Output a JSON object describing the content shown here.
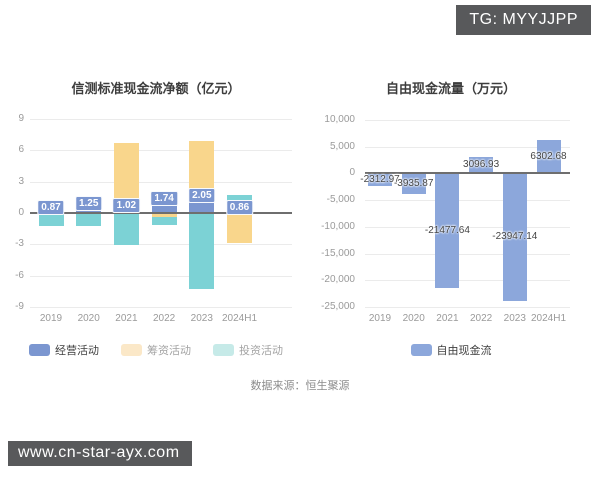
{
  "badge": {
    "text": "TG: MYYJJPP"
  },
  "watermark": {
    "text": "www.cn-star-ayx.com"
  },
  "source": {
    "text": "数据来源：恒生聚源"
  },
  "colors": {
    "operating_blue": "#7b96d0",
    "financing_orange": "#f9d68c",
    "investing_teal": "#7cd2d5",
    "free_cashflow_blue": "#8ca7db",
    "zero_line": "#6e6e6e",
    "gridline": "#ebebeb",
    "badge_bg": "#58595b"
  },
  "chart_data": [
    {
      "type": "bar",
      "variant": "stacked",
      "title": "信测标准现金流净额（亿元）",
      "unit": "亿元",
      "categories": [
        "2019",
        "2020",
        "2021",
        "2022",
        "2023",
        "2024H1"
      ],
      "ylim": [
        -9,
        9
      ],
      "yticks": [
        9,
        6,
        3,
        0,
        -3,
        -6,
        -9
      ],
      "grid": true,
      "legend_position": "bottom",
      "label_style": "box",
      "series": [
        {
          "name": "经营活动",
          "color": "#7b96d0",
          "legend_color": "#7b96d0",
          "values": [
            0.87,
            1.25,
            1.02,
            1.74,
            2.05,
            0.86
          ],
          "labels": [
            "0.87",
            "1.25",
            "1.02",
            "1.74",
            "2.05",
            "0.86"
          ]
        },
        {
          "name": "筹资活动",
          "color": "#f9d68c",
          "legend_color": "#fbe8c8",
          "legend_dim": true,
          "values": [
            0.1,
            0,
            5.7,
            -0.35,
            4.8,
            -2.87
          ]
        },
        {
          "name": "投资活动",
          "color": "#7cd2d5",
          "legend_color": "#c6eae8",
          "legend_dim": true,
          "values": [
            -1.25,
            -1.2,
            -3.1,
            -0.8,
            -7.3,
            0.9
          ]
        }
      ]
    },
    {
      "type": "bar",
      "variant": "simple",
      "title": "自由现金流量（万元）",
      "unit": "万元",
      "categories": [
        "2019",
        "2020",
        "2021",
        "2022",
        "2023",
        "2024H1"
      ],
      "ylim": [
        -25000,
        10000
      ],
      "yticks": [
        10000,
        5000,
        0,
        -5000,
        -10000,
        -15000,
        -20000,
        -25000
      ],
      "ytick_labels": [
        "10,000",
        "5,000",
        "0",
        "-5,000",
        "-10,000",
        "-15,000",
        "-20,000",
        "-25,000"
      ],
      "grid": true,
      "legend_position": "bottom",
      "label_style": "plain",
      "series": [
        {
          "name": "自由现金流",
          "color": "#8ca7db",
          "legend_color": "#8ca7db",
          "values": [
            -2312.97,
            -3935.87,
            -21477.64,
            3096.93,
            -23947.14,
            6302.68
          ],
          "labels": [
            "-2312.97",
            "-3935.87",
            "-21477.64",
            "3096.93",
            "-23947.14",
            "6302.68"
          ]
        }
      ]
    }
  ]
}
